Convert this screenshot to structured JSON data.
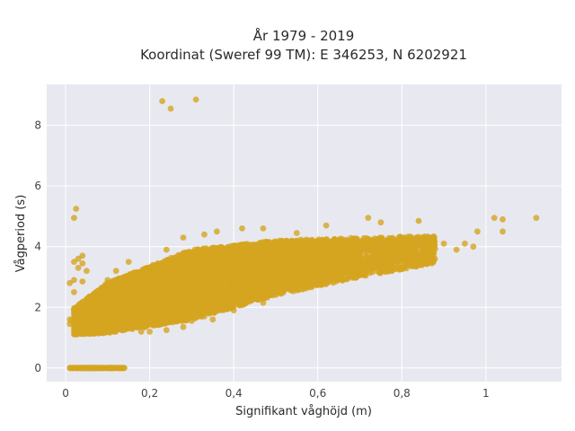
{
  "chart_data": {
    "type": "scatter",
    "title_line1": "År 1979 - 2019",
    "title_line2": "Koordinat (Sweref 99 TM): E 346253, N 6202921",
    "xlabel": "Signifikant våghöjd (m)",
    "ylabel": "Vågperiod (s)",
    "xlim": [
      -0.045,
      1.18
    ],
    "ylim": [
      -0.45,
      9.35
    ],
    "x_ticks": [
      0,
      0.2,
      0.4,
      0.6,
      0.8,
      1
    ],
    "x_tick_labels": [
      "0",
      "0,2",
      "0,4",
      "0,6",
      "0,8",
      "1"
    ],
    "y_ticks": [
      0,
      2,
      4,
      6,
      8
    ],
    "y_tick_labels": [
      "0",
      "2",
      "4",
      "6",
      "8"
    ],
    "grid": true,
    "marker_color": "#D4A520",
    "background_color": "#E8E8F0",
    "points": [
      [
        0.23,
        8.8
      ],
      [
        0.31,
        8.85
      ],
      [
        0.25,
        8.55
      ],
      [
        0.025,
        5.25
      ],
      [
        0.02,
        4.95
      ],
      [
        1.12,
        4.95
      ],
      [
        1.02,
        4.95
      ],
      [
        1.04,
        4.9
      ],
      [
        0.98,
        4.5
      ],
      [
        1.04,
        4.5
      ],
      [
        0.84,
        4.85
      ],
      [
        0.72,
        4.95
      ],
      [
        0.75,
        4.8
      ],
      [
        0.62,
        4.7
      ],
      [
        0.47,
        4.6
      ],
      [
        0.55,
        4.45
      ],
      [
        0.42,
        4.6
      ],
      [
        0.36,
        4.5
      ],
      [
        0.33,
        4.4
      ],
      [
        0.28,
        4.3
      ],
      [
        0.03,
        3.6
      ],
      [
        0.04,
        3.7
      ],
      [
        0.02,
        3.5
      ],
      [
        0.03,
        3.3
      ],
      [
        0.05,
        3.2
      ],
      [
        0.02,
        2.9
      ],
      [
        0.04,
        2.85
      ],
      [
        0.02,
        2.5
      ],
      [
        0.01,
        2.8
      ],
      [
        0.04,
        3.45
      ],
      [
        0.9,
        4.1
      ],
      [
        0.93,
        3.9
      ],
      [
        0.95,
        4.1
      ],
      [
        0.86,
        3.55
      ],
      [
        0.97,
        4.0
      ],
      [
        0.24,
        3.9
      ],
      [
        0.15,
        3.5
      ],
      [
        0.12,
        3.2
      ],
      [
        0.1,
        2.9
      ],
      [
        0.01,
        1.6
      ],
      [
        0.01,
        1.45
      ],
      [
        0.015,
        1.55
      ],
      [
        0.2,
        1.2
      ],
      [
        0.28,
        1.35
      ],
      [
        0.35,
        1.6
      ],
      [
        0.4,
        1.9
      ],
      [
        0.47,
        2.15
      ],
      [
        0.18,
        1.2
      ],
      [
        0.24,
        1.25
      ],
      [
        0.33,
        1.7
      ],
      [
        0.3,
        1.55
      ]
    ],
    "density_bands": [
      {
        "x_from": 0.02,
        "x_to": 0.1,
        "y_low_from": 1.1,
        "y_low_to": 1.15,
        "y_high_from": 2.0,
        "y_high_to": 2.8,
        "count": 900
      },
      {
        "x_from": 0.1,
        "x_to": 0.3,
        "y_low_from": 1.15,
        "y_low_to": 1.6,
        "y_high_from": 2.8,
        "y_high_to": 3.9,
        "count": 2400
      },
      {
        "x_from": 0.3,
        "x_to": 0.5,
        "y_low_from": 1.6,
        "y_low_to": 2.4,
        "y_high_from": 3.9,
        "y_high_to": 4.2,
        "count": 1800
      },
      {
        "x_from": 0.5,
        "x_to": 0.7,
        "y_low_from": 2.4,
        "y_low_to": 3.0,
        "y_high_from": 4.2,
        "y_high_to": 4.3,
        "count": 1100
      },
      {
        "x_from": 0.7,
        "x_to": 0.88,
        "y_low_from": 3.0,
        "y_low_to": 3.45,
        "y_high_from": 4.3,
        "y_high_to": 4.35,
        "count": 600
      }
    ],
    "zero_band": {
      "x_from": 0.01,
      "x_to": 0.14,
      "y": 0,
      "count": 120
    }
  }
}
